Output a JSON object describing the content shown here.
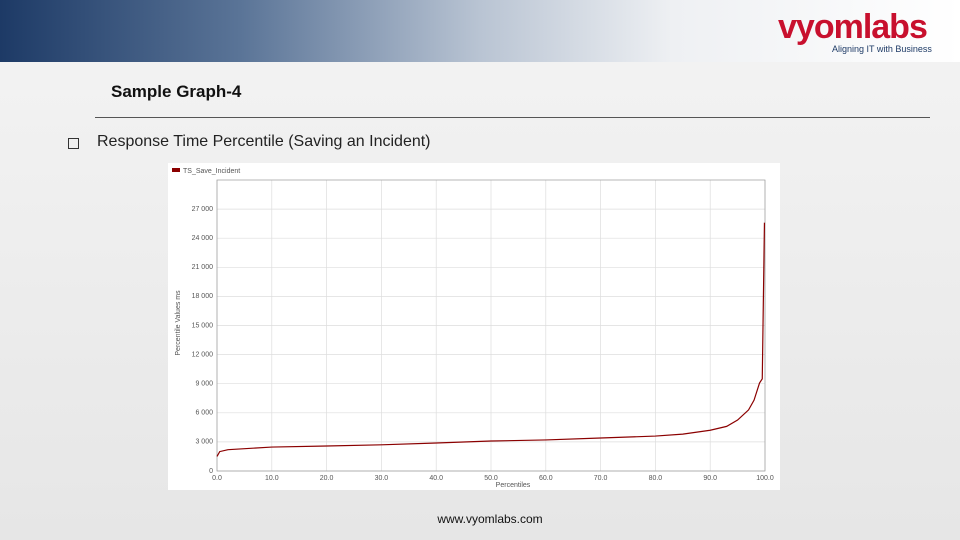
{
  "slide": {
    "logo": "vyomlabs",
    "tagline": "Aligning IT with Business",
    "title": "Sample Graph-4",
    "bullet": "Response Time Percentile (Saving an Incident)",
    "footer": "www.vyomlabs.com"
  },
  "chart_data": {
    "type": "line",
    "x_label": "Percentiles",
    "y_label": "Percentile Values ms",
    "series": [
      {
        "name": "TS_Save_Incident",
        "color": "#8b0000",
        "x": [
          0,
          0.5,
          2,
          10,
          20,
          30,
          40,
          50,
          60,
          70,
          80,
          85,
          90,
          93,
          95,
          97,
          98,
          99,
          99.5,
          99.9
        ],
        "values": [
          1500,
          2000,
          2200,
          2470,
          2580,
          2700,
          2890,
          3090,
          3200,
          3400,
          3600,
          3800,
          4200,
          4600,
          5250,
          6300,
          7300,
          9070,
          9500,
          25600
        ]
      }
    ],
    "xlim": [
      0,
      100
    ],
    "xticks": [
      {
        "value": 0,
        "label": "0.0"
      },
      {
        "value": 10,
        "label": "10.0"
      },
      {
        "value": 20,
        "label": "20.0"
      },
      {
        "value": 30,
        "label": "30.0"
      },
      {
        "value": 40,
        "label": "40.0"
      },
      {
        "value": 50,
        "label": "50.0"
      },
      {
        "value": 60,
        "label": "60.0"
      },
      {
        "value": 70,
        "label": "70.0"
      },
      {
        "value": 80,
        "label": "80.0"
      },
      {
        "value": 90,
        "label": "90.0"
      },
      {
        "value": 100,
        "label": "100.0"
      }
    ],
    "ylim": [
      0,
      30000
    ],
    "yticks": [
      0,
      {
        "value": 3000,
        "label": "3 000"
      },
      {
        "value": 6000,
        "label": "6 000"
      },
      {
        "value": 9000,
        "label": "9 000"
      },
      {
        "value": 12000,
        "label": "12 000"
      },
      {
        "value": 15000,
        "label": "15 000"
      },
      {
        "value": 18000,
        "label": "18 000"
      },
      {
        "value": 21000,
        "label": "21 000"
      },
      {
        "value": 24000,
        "label": "24 000"
      },
      {
        "value": 27000,
        "label": "27 000"
      }
    ],
    "grid": true
  }
}
